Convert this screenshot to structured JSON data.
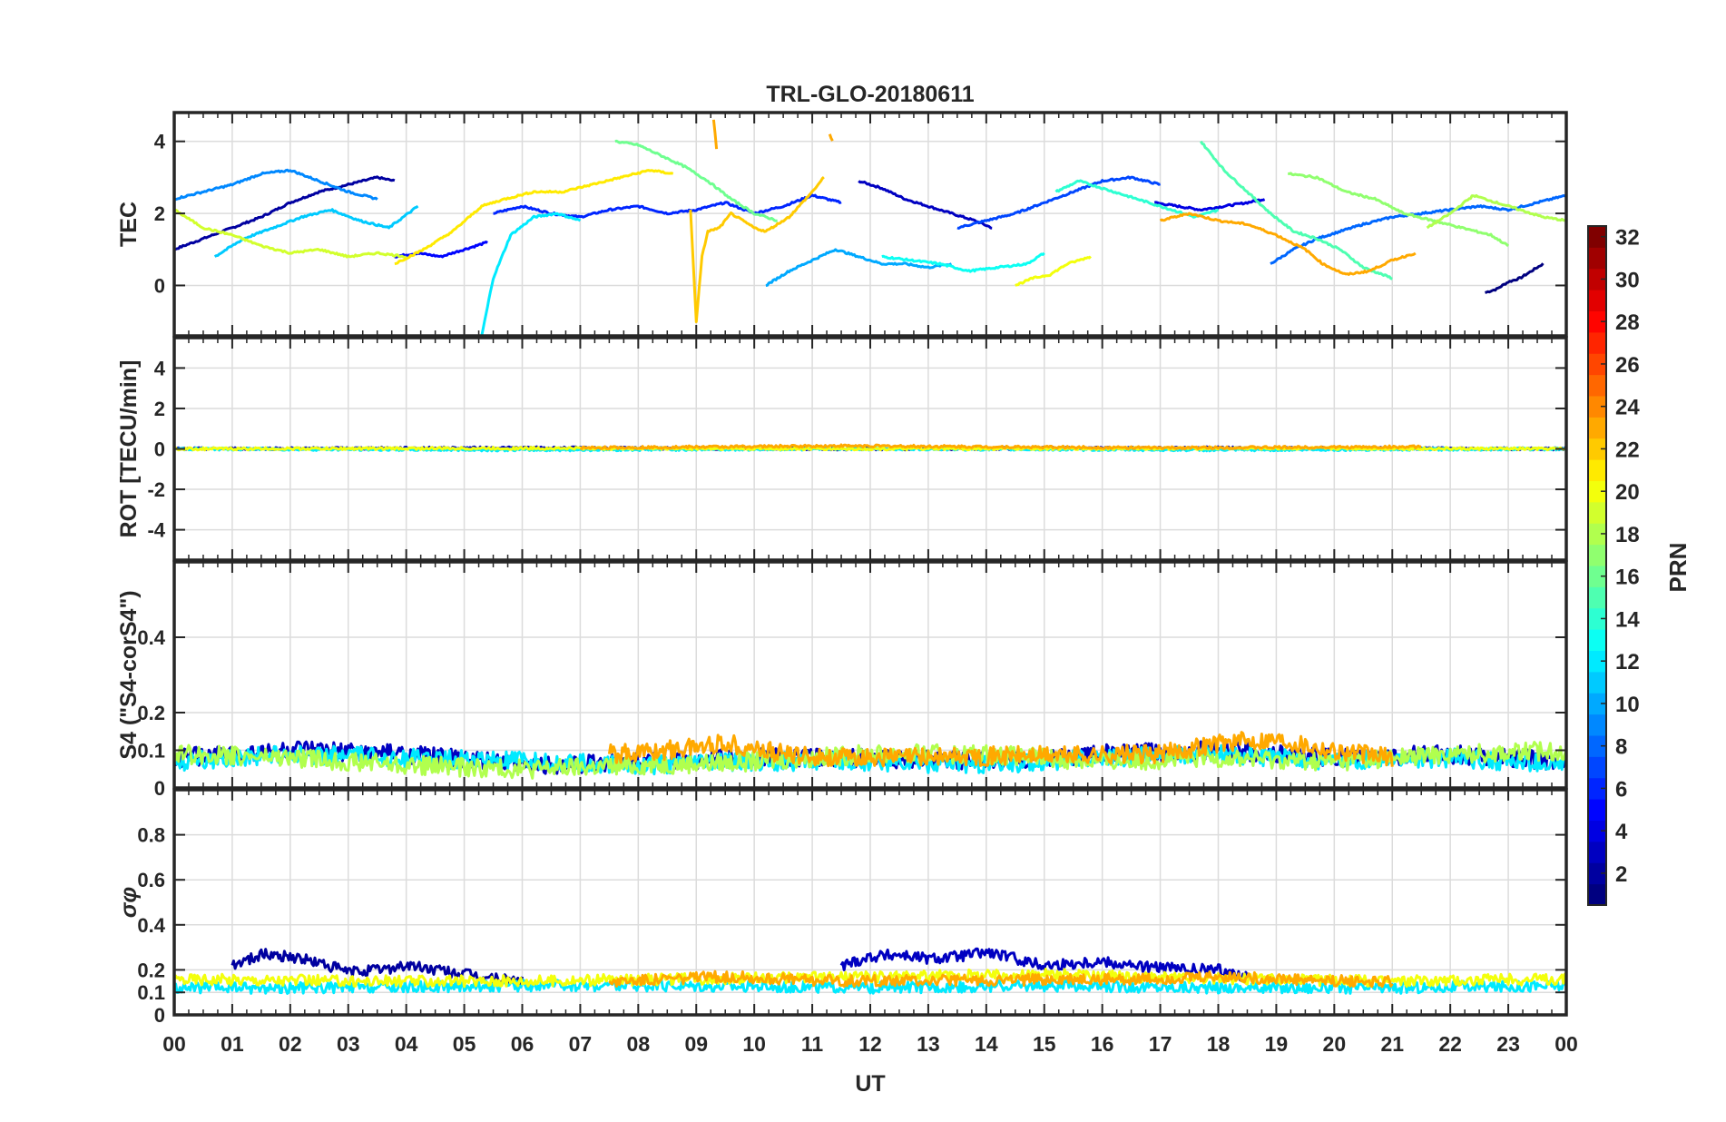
{
  "figure": {
    "title": "TRL-GLO-20180611",
    "xlabel": "UT",
    "x_tick_labels": [
      "00",
      "01",
      "02",
      "03",
      "04",
      "05",
      "06",
      "07",
      "08",
      "09",
      "10",
      "11",
      "12",
      "13",
      "14",
      "15",
      "16",
      "17",
      "18",
      "19",
      "20",
      "21",
      "22",
      "23",
      "00"
    ]
  },
  "colorbar": {
    "label": "PRN",
    "tick_labels": [
      "2",
      "4",
      "6",
      "8",
      "10",
      "12",
      "14",
      "16",
      "18",
      "20",
      "22",
      "24",
      "26",
      "28",
      "30",
      "32"
    ],
    "range": [
      1,
      32
    ],
    "colormap": "jet"
  },
  "chart_data": [
    {
      "panel": "tec",
      "type": "line",
      "ylabel": "TEC",
      "xlim": [
        0,
        24
      ],
      "ylim": [
        -1.4,
        4.8
      ],
      "y_ticks": [
        0,
        2,
        4
      ],
      "grid": true,
      "series": [
        {
          "prn": 1,
          "x": [
            22.6,
            22.8,
            23.0,
            23.2,
            23.4,
            23.6
          ],
          "y": [
            -0.2,
            -0.1,
            0.1,
            0.2,
            0.4,
            0.6
          ]
        },
        {
          "prn": 2,
          "x": [
            0.0,
            0.5,
            1.0,
            1.5,
            2.0,
            2.5,
            3.0,
            3.5,
            3.8
          ],
          "y": [
            1.0,
            1.3,
            1.6,
            1.9,
            2.3,
            2.6,
            2.8,
            3.0,
            2.9
          ]
        },
        {
          "prn": 3,
          "x": [
            11.8,
            12.2,
            12.6,
            13.0,
            13.4,
            13.8,
            14.1
          ],
          "y": [
            2.9,
            2.7,
            2.4,
            2.2,
            2.0,
            1.8,
            1.6
          ]
        },
        {
          "prn": 4,
          "x": [
            16.9,
            17.3,
            17.7,
            18.1,
            18.5,
            18.8
          ],
          "y": [
            2.3,
            2.2,
            2.1,
            2.2,
            2.3,
            2.4
          ]
        },
        {
          "prn": 5,
          "x": [
            3.8,
            4.2,
            4.6,
            5.0,
            5.4
          ],
          "y": [
            0.8,
            0.9,
            0.8,
            1.0,
            1.2
          ]
        },
        {
          "prn": 6,
          "x": [
            5.5,
            6.0,
            6.5,
            7.0,
            7.5,
            8.0,
            8.5,
            9.0,
            9.5,
            10.0,
            10.5,
            11.0,
            11.5
          ],
          "y": [
            2.0,
            2.2,
            2.0,
            1.9,
            2.1,
            2.2,
            2.0,
            2.1,
            2.3,
            2.0,
            2.2,
            2.5,
            2.3
          ]
        },
        {
          "prn": 7,
          "x": [
            13.5,
            14.0,
            14.5,
            15.0,
            15.5,
            16.0,
            16.5,
            17.0
          ],
          "y": [
            1.6,
            1.8,
            2.0,
            2.3,
            2.6,
            2.9,
            3.0,
            2.8
          ]
        },
        {
          "prn": 8,
          "x": [
            18.9,
            19.3,
            19.7,
            20.1,
            20.5,
            21.0,
            21.5,
            22.0,
            22.5,
            23.0,
            23.5,
            24.0
          ],
          "y": [
            0.6,
            1.0,
            1.3,
            1.5,
            1.7,
            1.9,
            2.0,
            2.1,
            2.2,
            2.1,
            2.3,
            2.5
          ]
        },
        {
          "prn": 9,
          "x": [
            0.0,
            0.5,
            1.0,
            1.5,
            2.0,
            2.5,
            3.0,
            3.5
          ],
          "y": [
            2.4,
            2.6,
            2.8,
            3.1,
            3.2,
            2.9,
            2.6,
            2.4
          ]
        },
        {
          "prn": 10,
          "x": [
            10.2,
            10.6,
            11.0,
            11.4,
            11.8,
            12.2,
            12.6,
            13.0,
            13.4
          ],
          "y": [
            0.0,
            0.4,
            0.7,
            1.0,
            0.8,
            0.6,
            0.6,
            0.5,
            0.6
          ]
        },
        {
          "prn": 11,
          "x": [
            0.7,
            1.2,
            1.7,
            2.2,
            2.7,
            3.2,
            3.7,
            4.2
          ],
          "y": [
            0.8,
            1.3,
            1.6,
            1.9,
            2.1,
            1.8,
            1.6,
            2.2
          ]
        },
        {
          "prn": 12,
          "x": [
            5.3,
            5.5,
            5.8,
            6.2,
            6.6,
            7.0
          ],
          "y": [
            -1.4,
            0.2,
            1.4,
            1.9,
            2.0,
            1.8
          ]
        },
        {
          "prn": 13,
          "x": [
            12.2,
            12.7,
            13.2,
            13.7,
            14.2,
            14.7,
            15.0
          ],
          "y": [
            0.8,
            0.7,
            0.6,
            0.4,
            0.5,
            0.6,
            0.9
          ]
        },
        {
          "prn": 14,
          "x": [
            15.2,
            15.6,
            16.0,
            16.4,
            16.8,
            17.2,
            17.6,
            18.0
          ],
          "y": [
            2.6,
            2.9,
            2.7,
            2.5,
            2.3,
            2.1,
            1.9,
            2.1
          ]
        },
        {
          "prn": 15,
          "x": [
            17.7,
            18.1,
            18.5,
            18.9,
            19.3,
            19.7,
            20.1,
            20.5,
            21.0
          ],
          "y": [
            4.0,
            3.2,
            2.6,
            2.0,
            1.5,
            1.3,
            1.0,
            0.5,
            0.2
          ]
        },
        {
          "prn": 16,
          "x": [
            7.6,
            8.0,
            8.4,
            8.8,
            9.2,
            9.6,
            10.0,
            10.4
          ],
          "y": [
            4.0,
            3.9,
            3.6,
            3.3,
            2.9,
            2.4,
            2.0,
            1.8
          ]
        },
        {
          "prn": 17,
          "x": [
            19.2,
            19.7,
            20.2,
            20.7,
            21.2,
            21.7,
            22.2,
            22.7,
            23.0
          ],
          "y": [
            3.1,
            3.0,
            2.6,
            2.4,
            2.0,
            1.8,
            1.6,
            1.4,
            1.1
          ]
        },
        {
          "prn": 18,
          "x": [
            21.6,
            22.0,
            22.4,
            22.8,
            23.2,
            23.6,
            24.0
          ],
          "y": [
            1.6,
            2.0,
            2.5,
            2.3,
            2.1,
            1.9,
            1.8
          ]
        },
        {
          "prn": 19,
          "x": [
            0.0,
            0.5,
            1.0,
            1.5,
            2.0,
            2.5,
            3.0,
            3.5,
            4.0
          ],
          "y": [
            2.1,
            1.6,
            1.4,
            1.1,
            0.9,
            1.0,
            0.8,
            0.9,
            0.8
          ]
        },
        {
          "prn": 20,
          "x": [
            14.5,
            14.8,
            15.1,
            15.4,
            15.8
          ],
          "y": [
            0.0,
            0.2,
            0.3,
            0.6,
            0.8
          ]
        },
        {
          "prn": 21,
          "x": [
            3.8,
            4.3,
            4.8,
            5.3,
            5.7,
            6.2,
            6.7,
            7.2,
            7.7,
            8.2,
            8.6
          ],
          "y": [
            0.6,
            1.0,
            1.5,
            2.2,
            2.4,
            2.6,
            2.6,
            2.8,
            3.0,
            3.2,
            3.1
          ]
        },
        {
          "prn": 22,
          "x": [
            8.9,
            9.0,
            9.1,
            9.2,
            9.4,
            9.6,
            9.8,
            10.0,
            10.2,
            10.6,
            11.0,
            11.2
          ],
          "y": [
            2.1,
            -1.0,
            0.8,
            1.5,
            1.6,
            2.0,
            1.8,
            1.6,
            1.5,
            1.9,
            2.6,
            3.0
          ]
        },
        {
          "prn": 23,
          "x": [
            17.0,
            17.5,
            18.0,
            18.5,
            19.0,
            19.5,
            19.8,
            20.2,
            20.6,
            21.0,
            21.4
          ],
          "y": [
            1.8,
            2.0,
            1.8,
            1.7,
            1.4,
            1.0,
            0.6,
            0.3,
            0.4,
            0.7,
            0.9
          ]
        },
        {
          "prn": 23,
          "x": [
            9.3,
            9.35
          ],
          "y": [
            4.6,
            3.8
          ]
        },
        {
          "prn": 23,
          "x": [
            11.3,
            11.35
          ],
          "y": [
            4.2,
            4.0
          ]
        }
      ]
    },
    {
      "panel": "rot",
      "type": "line",
      "ylabel": "ROT [TECU/min]",
      "xlim": [
        0,
        24
      ],
      "ylim": [
        -5.5,
        5.5
      ],
      "y_ticks": [
        -4,
        -2,
        0,
        2,
        4
      ],
      "grid": true,
      "note": "all PRNs fluctuate within about ±0.2 TECU/min around 0",
      "series": [
        {
          "prn": 3,
          "x": [
            0,
            6,
            12,
            18,
            24
          ],
          "y": [
            0.0,
            0.05,
            0.0,
            0.05,
            0.0
          ]
        },
        {
          "prn": 12,
          "x": [
            0,
            6,
            12,
            18,
            24
          ],
          "y": [
            0.0,
            -0.05,
            0.0,
            -0.05,
            0.0
          ]
        },
        {
          "prn": 20,
          "x": [
            0,
            6,
            12,
            18,
            24
          ],
          "y": [
            0.0,
            0.03,
            0.0,
            0.03,
            0.0
          ]
        },
        {
          "prn": 23,
          "x": [
            7,
            11.5,
            17,
            21.5
          ],
          "y": [
            0.05,
            0.15,
            0.05,
            0.1
          ]
        }
      ]
    },
    {
      "panel": "s4",
      "type": "line",
      "ylabel": "S4 (\"S4-corS4\")",
      "xlim": [
        0,
        24
      ],
      "ylim": [
        0,
        0.6
      ],
      "y_tick_labels": [
        "0",
        "0.1",
        "0.2",
        "0.4"
      ],
      "y_ticks": [
        0,
        0.1,
        0.2,
        0.4
      ],
      "grid": true,
      "series": [
        {
          "prn": 3,
          "x": [
            0,
            2,
            4,
            6,
            8,
            10,
            12,
            14,
            16,
            18,
            20,
            22,
            24
          ],
          "y": [
            0.08,
            0.1,
            0.09,
            0.06,
            0.07,
            0.08,
            0.08,
            0.07,
            0.09,
            0.1,
            0.08,
            0.09,
            0.07
          ]
        },
        {
          "prn": 12,
          "x": [
            0,
            2,
            4,
            6,
            8,
            10,
            12,
            14,
            16,
            18,
            20,
            22,
            24
          ],
          "y": [
            0.07,
            0.09,
            0.08,
            0.07,
            0.06,
            0.07,
            0.07,
            0.06,
            0.08,
            0.09,
            0.07,
            0.08,
            0.06
          ]
        },
        {
          "prn": 18,
          "x": [
            0,
            2,
            4,
            6,
            8,
            10,
            12,
            14,
            16,
            18,
            20,
            22,
            24
          ],
          "y": [
            0.09,
            0.08,
            0.06,
            0.05,
            0.06,
            0.07,
            0.09,
            0.09,
            0.07,
            0.08,
            0.07,
            0.09,
            0.1
          ]
        },
        {
          "prn": 23,
          "x": [
            7.5,
            8.5,
            9.5,
            10.5,
            11.5,
            17,
            18,
            19,
            20,
            21
          ],
          "y": [
            0.09,
            0.1,
            0.12,
            0.09,
            0.08,
            0.09,
            0.12,
            0.13,
            0.1,
            0.08
          ]
        }
      ]
    },
    {
      "panel": "sigma_phi",
      "type": "line",
      "ylabel": "σφ",
      "xlim": [
        0,
        24
      ],
      "ylim": [
        0,
        1.0
      ],
      "y_tick_labels": [
        "0",
        "0.1",
        "0.2",
        "0.4",
        "0.6",
        "0.8"
      ],
      "y_ticks": [
        0,
        0.1,
        0.2,
        0.4,
        0.6,
        0.8
      ],
      "grid": true,
      "series": [
        {
          "prn": 2,
          "x": [
            1.0,
            1.5,
            2.0,
            2.5,
            3.0,
            3.5,
            4.0,
            4.5,
            5.0,
            5.5,
            6.0
          ],
          "y": [
            0.22,
            0.27,
            0.26,
            0.23,
            0.19,
            0.2,
            0.22,
            0.2,
            0.18,
            0.16,
            0.15
          ]
        },
        {
          "prn": 3,
          "x": [
            11.5,
            12.0,
            12.5,
            13.0,
            13.5,
            14.0,
            14.5,
            15.0,
            15.5,
            16.0,
            16.5,
            17.0,
            17.5,
            18.0,
            18.5
          ],
          "y": [
            0.22,
            0.26,
            0.27,
            0.25,
            0.26,
            0.28,
            0.25,
            0.22,
            0.23,
            0.24,
            0.22,
            0.21,
            0.2,
            0.2,
            0.17
          ]
        },
        {
          "prn": 12,
          "x": [
            0,
            3,
            6,
            9,
            12,
            15,
            18,
            21,
            24
          ],
          "y": [
            0.12,
            0.12,
            0.13,
            0.13,
            0.12,
            0.13,
            0.12,
            0.12,
            0.13
          ]
        },
        {
          "prn": 20,
          "x": [
            0,
            3,
            6,
            9,
            12,
            15,
            18,
            21,
            24
          ],
          "y": [
            0.16,
            0.15,
            0.15,
            0.16,
            0.17,
            0.18,
            0.16,
            0.15,
            0.16
          ]
        },
        {
          "prn": 23,
          "x": [
            7.5,
            8.5,
            9.5,
            10.5,
            11.5,
            17,
            18,
            19,
            20,
            21
          ],
          "y": [
            0.15,
            0.16,
            0.17,
            0.16,
            0.15,
            0.16,
            0.17,
            0.16,
            0.15,
            0.15
          ]
        }
      ]
    }
  ]
}
